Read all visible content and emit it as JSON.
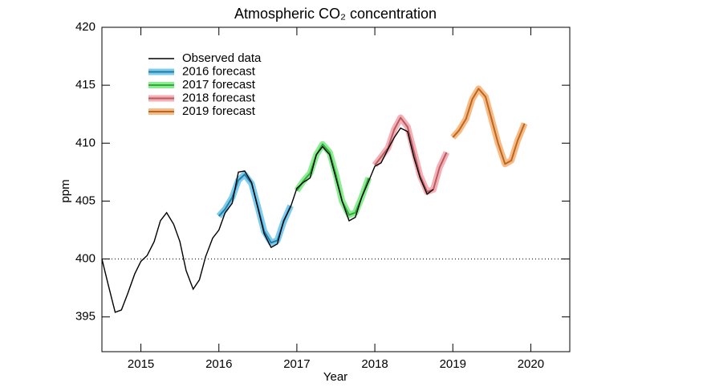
{
  "chart_data": {
    "type": "line",
    "title": "Atmospheric CO₂ concentration",
    "x_label": "Year",
    "y_label": "ppm",
    "xlim": [
      2014.5,
      2020.5
    ],
    "xticks": [
      2015,
      2016,
      2017,
      2018,
      2019,
      2020
    ],
    "ylim": [
      392,
      420
    ],
    "yticks": [
      395,
      400,
      405,
      410,
      415,
      420
    ],
    "reference_line": 400,
    "legend": "upper left",
    "series": [
      {
        "name": "Observed data",
        "color": "#000000",
        "x": [
          2014.5,
          2014.58,
          2014.67,
          2014.75,
          2014.83,
          2014.92,
          2015.0,
          2015.08,
          2015.17,
          2015.25,
          2015.33,
          2015.42,
          2015.5,
          2015.58,
          2015.67,
          2015.75,
          2015.83,
          2015.92,
          2016.0,
          2016.08,
          2016.17,
          2016.25,
          2016.33,
          2016.42,
          2016.5,
          2016.58,
          2016.67,
          2016.75,
          2016.83,
          2016.92,
          2017.0,
          2017.08,
          2017.17,
          2017.25,
          2017.33,
          2017.42,
          2017.5,
          2017.58,
          2017.67,
          2017.75,
          2017.83,
          2017.92,
          2018.0,
          2018.08,
          2018.17,
          2018.25,
          2018.33,
          2018.42,
          2018.5,
          2018.58,
          2018.67,
          2018.75
        ],
        "values": [
          400.0,
          397.8,
          395.4,
          395.6,
          397.0,
          398.7,
          399.8,
          400.3,
          401.5,
          403.3,
          404.0,
          403.0,
          401.5,
          399.0,
          397.4,
          398.2,
          400.2,
          401.8,
          402.5,
          404.0,
          404.8,
          407.5,
          407.6,
          406.6,
          404.4,
          402.2,
          401.0,
          401.3,
          403.3,
          404.5,
          406.1,
          406.6,
          407.0,
          409.0,
          409.7,
          409.0,
          407.0,
          405.0,
          403.3,
          403.6,
          405.3,
          406.7,
          408.0,
          408.3,
          409.5,
          410.5,
          411.3,
          411.0,
          408.8,
          407.0,
          405.6,
          406.0
        ]
      },
      {
        "name": "2016 forecast",
        "color": "#29a8e0",
        "x": [
          2016.0,
          2016.08,
          2016.17,
          2016.25,
          2016.33,
          2016.42,
          2016.5,
          2016.58,
          2016.67,
          2016.75,
          2016.83,
          2016.92
        ],
        "values": [
          403.7,
          404.3,
          405.3,
          406.8,
          407.3,
          406.5,
          404.5,
          402.4,
          401.4,
          401.6,
          403.2,
          404.6
        ]
      },
      {
        "name": "2017 forecast",
        "color": "#3ee04a",
        "x": [
          2017.0,
          2017.08,
          2017.17,
          2017.25,
          2017.33,
          2017.42,
          2017.5,
          2017.58,
          2017.67,
          2017.75,
          2017.83,
          2017.92
        ],
        "values": [
          405.9,
          406.7,
          407.4,
          409.0,
          409.9,
          409.2,
          407.3,
          405.0,
          403.8,
          404.0,
          405.3,
          407.0
        ]
      },
      {
        "name": "2018 forecast",
        "color": "#f07a84",
        "x": [
          2018.0,
          2018.08,
          2018.17,
          2018.25,
          2018.33,
          2018.42,
          2018.5,
          2018.58,
          2018.67,
          2018.75,
          2018.83,
          2018.92
        ],
        "values": [
          408.1,
          408.8,
          409.6,
          411.2,
          412.2,
          411.4,
          409.3,
          407.2,
          405.8,
          406.0,
          407.9,
          409.2
        ]
      },
      {
        "name": "2019 forecast",
        "color": "#f58b2e",
        "x": [
          2019.0,
          2019.08,
          2019.17,
          2019.25,
          2019.33,
          2019.42,
          2019.5,
          2019.58,
          2019.67,
          2019.75,
          2019.83,
          2019.92
        ],
        "values": [
          410.5,
          411.1,
          412.1,
          413.8,
          414.7,
          414.0,
          412.0,
          410.0,
          408.2,
          408.5,
          410.2,
          411.7
        ]
      }
    ]
  }
}
